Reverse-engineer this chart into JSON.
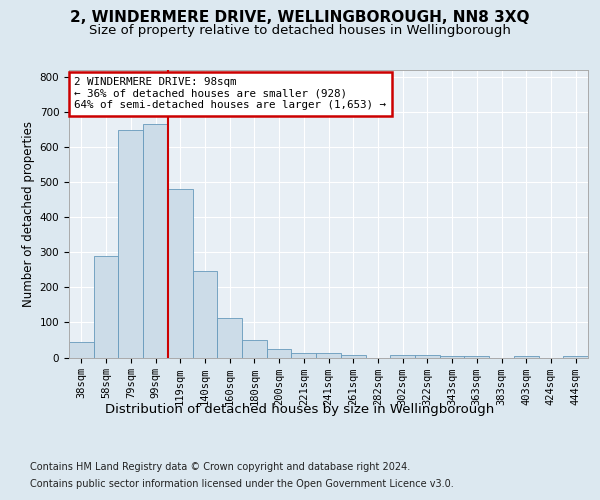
{
  "title": "2, WINDERMERE DRIVE, WELLINGBOROUGH, NN8 3XQ",
  "subtitle": "Size of property relative to detached houses in Wellingborough",
  "xlabel": "Distribution of detached houses by size in Wellingborough",
  "ylabel": "Number of detached properties",
  "footer_line1": "Contains HM Land Registry data © Crown copyright and database right 2024.",
  "footer_line2": "Contains public sector information licensed under the Open Government Licence v3.0.",
  "bar_labels": [
    "38sqm",
    "58sqm",
    "79sqm",
    "99sqm",
    "119sqm",
    "140sqm",
    "160sqm",
    "180sqm",
    "200sqm",
    "221sqm",
    "241sqm",
    "261sqm",
    "282sqm",
    "302sqm",
    "322sqm",
    "343sqm",
    "363sqm",
    "383sqm",
    "403sqm",
    "424sqm",
    "444sqm"
  ],
  "bar_values": [
    45,
    290,
    650,
    665,
    480,
    248,
    113,
    50,
    25,
    13,
    13,
    8,
    0,
    8,
    8,
    5,
    5,
    0,
    5,
    0,
    5
  ],
  "bar_color": "#ccdce8",
  "bar_edge_color": "#6699bb",
  "annotation_text": "2 WINDERMERE DRIVE: 98sqm\n← 36% of detached houses are smaller (928)\n64% of semi-detached houses are larger (1,653) →",
  "annotation_box_color": "#ffffff",
  "annotation_box_edge": "#cc0000",
  "vline_color": "#cc0000",
  "vline_x_index": 3.5,
  "ylim": [
    0,
    820
  ],
  "yticks": [
    0,
    100,
    200,
    300,
    400,
    500,
    600,
    700,
    800
  ],
  "bg_color": "#dce8f0",
  "plot_bg_color": "#e8eff5",
  "grid_color": "#ffffff",
  "title_fontsize": 11,
  "subtitle_fontsize": 9.5,
  "xlabel_fontsize": 9.5,
  "ylabel_fontsize": 8.5,
  "tick_fontsize": 7.5,
  "footer_fontsize": 7.0
}
